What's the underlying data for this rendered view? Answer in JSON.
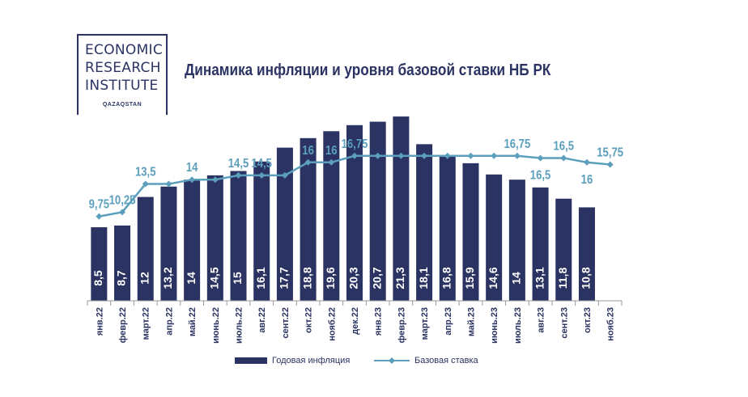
{
  "logo": {
    "line1": "ECONOMIC",
    "line2": "RESEARCH",
    "line3": "INSTITUTE",
    "sub": "QAZAQSTAN"
  },
  "chart_data": {
    "type": "bar",
    "title": "Динамика инфляции и уровня базовой ставки НБ РК",
    "categories": [
      "янв.22",
      "февр.22",
      "март.22",
      "апр.22",
      "май.22",
      "июнь.22",
      "июль.22",
      "авг.22",
      "сент.22",
      "окт.22",
      "нояб.22",
      "дек.22",
      "янв.23",
      "февр.23",
      "март.23",
      "апр.23",
      "май.23",
      "июнь.23",
      "июль.23",
      "авг.23",
      "сент.23",
      "окт.23",
      "нояб.23"
    ],
    "series": [
      {
        "name": "Годовая инфляция",
        "type": "bar",
        "color": "#2b3362",
        "values": [
          8.5,
          8.7,
          12,
          13.2,
          14,
          14.5,
          15,
          16.1,
          17.7,
          18.8,
          19.6,
          20.3,
          20.7,
          21.3,
          18.1,
          16.8,
          15.9,
          14.6,
          14,
          13.1,
          11.8,
          10.8,
          null
        ],
        "labels": [
          "8,5",
          "8,7",
          "12",
          "13,2",
          "14",
          "14,5",
          "15",
          "16,1",
          "17,7",
          "18,8",
          "19,6",
          "20,3",
          "20,7",
          "21,3",
          "18,1",
          "16,8",
          "15,9",
          "14,6",
          "14",
          "13,1",
          "11,8",
          "10,8",
          ""
        ]
      },
      {
        "name": "Базовая ставка",
        "type": "line",
        "color": "#5b9fbd",
        "values": [
          9.75,
          10.25,
          13.5,
          13.5,
          14,
          14,
          14.5,
          14.5,
          14.5,
          16,
          16,
          16.75,
          16.75,
          16.75,
          16.75,
          16.75,
          16.75,
          16.75,
          16.75,
          16.5,
          16.5,
          16,
          15.75
        ],
        "labels": [
          "9,75",
          "10,25",
          "13,5",
          "",
          "14",
          "",
          "14,5",
          "14,5",
          "",
          "16",
          "16",
          "16,75",
          "",
          "",
          "",
          "",
          "",
          "",
          "16,75",
          "16,5",
          "16,5",
          "16",
          "15,75"
        ]
      }
    ],
    "legend_position": "bottom"
  }
}
